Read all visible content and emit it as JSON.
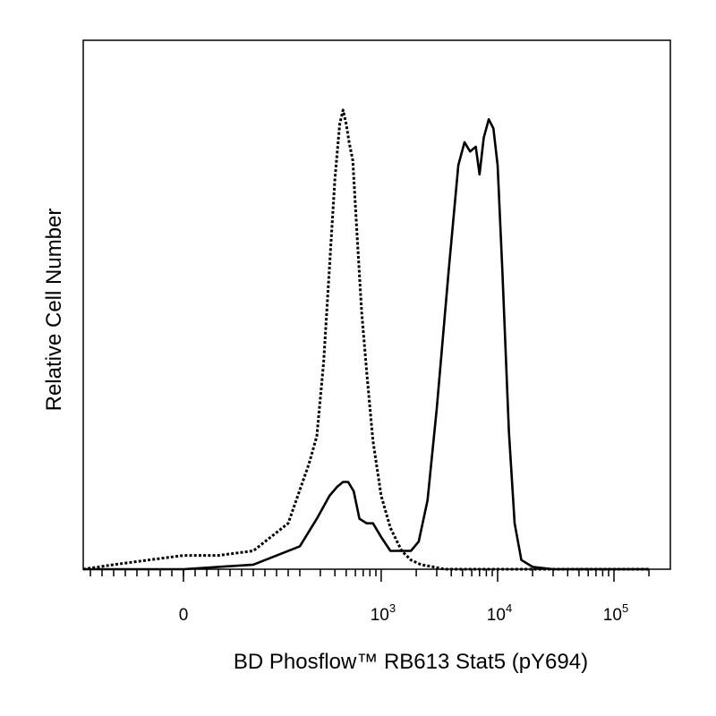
{
  "chart_data": {
    "type": "line",
    "title": "",
    "xlabel": "BD Phosflow™ RB613  Stat5 (pY694)",
    "ylabel": "Relative Cell Number",
    "x_scale": "biexponential",
    "xlim": [
      -500,
      200000
    ],
    "ylim": [
      0,
      1
    ],
    "grid": false,
    "legend": "none",
    "x_ticks": [
      {
        "value": 0,
        "base": "0",
        "exp": ""
      },
      {
        "value": 1000,
        "base": "10",
        "exp": "3"
      },
      {
        "value": 10000,
        "base": "10",
        "exp": "4"
      },
      {
        "value": 100000,
        "base": "10",
        "exp": "5"
      }
    ],
    "series": [
      {
        "style": "dotted",
        "x": [
          -250,
          -120,
          -60,
          0,
          60,
          120,
          180,
          240,
          280,
          320,
          360,
          400,
          440,
          470,
          500,
          530,
          570,
          620,
          680,
          750,
          850,
          1000,
          1200,
          1500,
          1800,
          2200,
          2800,
          3500,
          5000,
          20000,
          200000
        ],
        "y": [
          0.0,
          0.01,
          0.02,
          0.03,
          0.03,
          0.04,
          0.1,
          0.23,
          0.29,
          0.45,
          0.66,
          0.85,
          0.97,
          1.0,
          0.97,
          0.93,
          0.89,
          0.73,
          0.56,
          0.43,
          0.28,
          0.16,
          0.09,
          0.04,
          0.02,
          0.01,
          0.005,
          0.0,
          0.0,
          0.0,
          0.0
        ]
      },
      {
        "style": "solid",
        "x": [
          -250,
          -120,
          0,
          120,
          200,
          280,
          360,
          420,
          470,
          520,
          580,
          650,
          750,
          850,
          1000,
          1200,
          1500,
          1800,
          2100,
          2500,
          3000,
          3800,
          4600,
          5200,
          5800,
          6500,
          7000,
          7600,
          8400,
          9200,
          10000,
          11000,
          12500,
          14000,
          16000,
          20000,
          30000,
          200000
        ],
        "y": [
          0.0,
          0.0,
          0.0,
          0.01,
          0.05,
          0.11,
          0.16,
          0.18,
          0.19,
          0.19,
          0.17,
          0.11,
          0.1,
          0.1,
          0.07,
          0.04,
          0.04,
          0.04,
          0.06,
          0.15,
          0.35,
          0.65,
          0.88,
          0.93,
          0.91,
          0.92,
          0.86,
          0.94,
          0.98,
          0.96,
          0.88,
          0.65,
          0.3,
          0.1,
          0.02,
          0.005,
          0.0,
          0.0
        ]
      }
    ]
  }
}
